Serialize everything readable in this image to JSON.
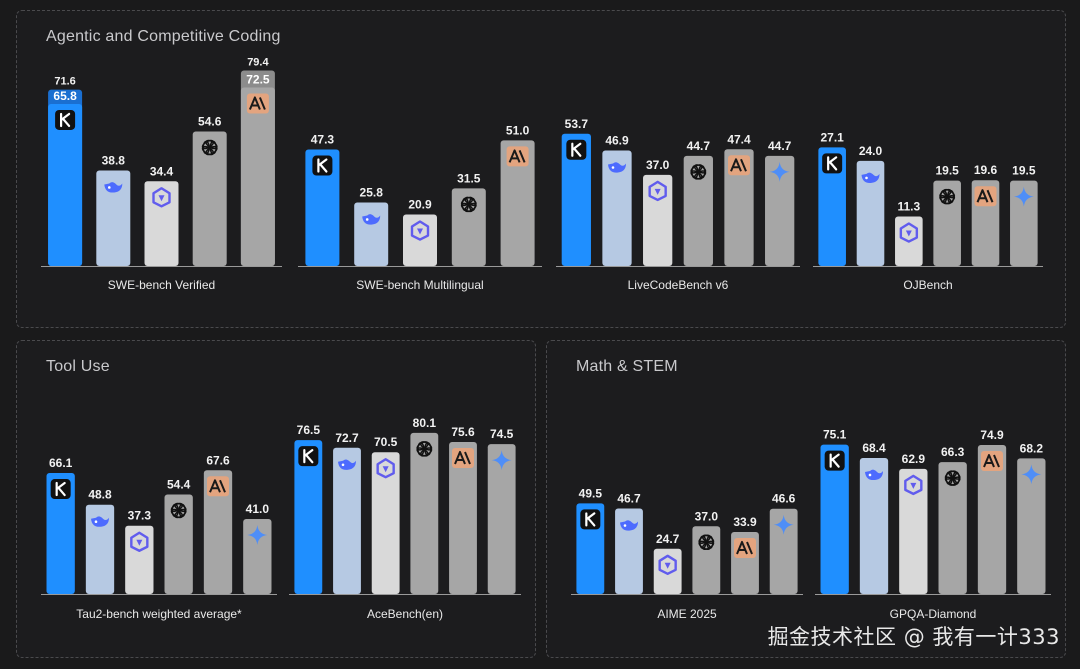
{
  "watermark": "掘金技术社区 @ 我有一计333",
  "colors": {
    "kimi": "#1f8fff",
    "deepseek": "#b6c9e3",
    "qwen": "#d9d9d9",
    "openai": "#a6a6a6",
    "anthropic": "#a6a6a6",
    "gemini": "#a6a6a6",
    "anthropic_badge": "#e3a47f",
    "kimi_badge": "#111111",
    "text": "#e9e9e9",
    "bar_label": "#f2f2f2",
    "axis": "#9a9a9a"
  },
  "models": [
    {
      "key": "kimi",
      "icon": "kimi-k-icon"
    },
    {
      "key": "deepseek",
      "icon": "deepseek-whale-icon"
    },
    {
      "key": "qwen",
      "icon": "qwen-icon"
    },
    {
      "key": "openai",
      "icon": "openai-icon"
    },
    {
      "key": "anthropic",
      "icon": "anthropic-icon"
    },
    {
      "key": "gemini",
      "icon": "gemini-sparkle-icon"
    }
  ],
  "chart_data": [
    {
      "type": "bar",
      "panel": "Agentic and Competitive Coding",
      "title": "Agentic and Competitive Coding",
      "groups": [
        {
          "label": "SWE-bench Verified",
          "ymax": 80,
          "bars": [
            {
              "model": "kimi",
              "value": 65.8,
              "extra": 71.6
            },
            {
              "model": "deepseek",
              "value": 38.8
            },
            {
              "model": "qwen",
              "value": 34.4
            },
            {
              "model": "openai",
              "value": 54.6
            },
            {
              "model": "anthropic",
              "value": 72.5,
              "extra": 79.4
            }
          ]
        },
        {
          "label": "SWE-bench Multilingual",
          "ymax": 80,
          "bars": [
            {
              "model": "kimi",
              "value": 47.3
            },
            {
              "model": "deepseek",
              "value": 25.8
            },
            {
              "model": "qwen",
              "value": 20.9
            },
            {
              "model": "openai",
              "value": 31.5
            },
            {
              "model": "anthropic",
              "value": 51.0
            }
          ]
        },
        {
          "label": "LiveCodeBench v6",
          "ymax": 80,
          "bars": [
            {
              "model": "kimi",
              "value": 53.7
            },
            {
              "model": "deepseek",
              "value": 46.9
            },
            {
              "model": "qwen",
              "value": 37.0
            },
            {
              "model": "openai",
              "value": 44.7
            },
            {
              "model": "anthropic",
              "value": 47.4
            },
            {
              "model": "gemini",
              "value": 44.7
            }
          ]
        },
        {
          "label": "OJBench",
          "ymax": 45,
          "bars": [
            {
              "model": "kimi",
              "value": 27.1
            },
            {
              "model": "deepseek",
              "value": 24.0
            },
            {
              "model": "qwen",
              "value": 11.3
            },
            {
              "model": "openai",
              "value": 19.5
            },
            {
              "model": "anthropic",
              "value": 19.6
            },
            {
              "model": "gemini",
              "value": 19.5
            }
          ]
        }
      ]
    },
    {
      "type": "bar",
      "panel": "Tool Use",
      "title": "Tool Use",
      "groups": [
        {
          "label": "Tau2-bench weighted average*",
          "ymax": 100,
          "bars": [
            {
              "model": "kimi",
              "value": 66.1
            },
            {
              "model": "deepseek",
              "value": 48.8
            },
            {
              "model": "qwen",
              "value": 37.3
            },
            {
              "model": "openai",
              "value": 54.4
            },
            {
              "model": "anthropic",
              "value": 67.6
            },
            {
              "model": "gemini",
              "value": 41.0
            }
          ]
        },
        {
          "label": "AceBench(en)",
          "ymax": 91,
          "bars": [
            {
              "model": "kimi",
              "value": 76.5
            },
            {
              "model": "deepseek",
              "value": 72.7
            },
            {
              "model": "qwen",
              "value": 70.5
            },
            {
              "model": "openai",
              "value": 80.1
            },
            {
              "model": "anthropic",
              "value": 75.6
            },
            {
              "model": "gemini",
              "value": 74.5
            }
          ]
        }
      ]
    },
    {
      "type": "bar",
      "panel": "Math & STEM",
      "title": "Math & STEM",
      "groups": [
        {
          "label": "AIME 2025",
          "ymax": 100,
          "bars": [
            {
              "model": "kimi",
              "value": 49.5
            },
            {
              "model": "deepseek",
              "value": 46.7
            },
            {
              "model": "qwen",
              "value": 24.7
            },
            {
              "model": "openai",
              "value": 37.0
            },
            {
              "model": "anthropic",
              "value": 33.9
            },
            {
              "model": "gemini",
              "value": 46.6
            }
          ]
        },
        {
          "label": "GPQA-Diamond",
          "ymax": 92,
          "bars": [
            {
              "model": "kimi",
              "value": 75.1
            },
            {
              "model": "deepseek",
              "value": 68.4
            },
            {
              "model": "qwen",
              "value": 62.9
            },
            {
              "model": "openai",
              "value": 66.3
            },
            {
              "model": "anthropic",
              "value": 74.9
            },
            {
              "model": "gemini",
              "value": 68.2
            }
          ]
        }
      ]
    }
  ]
}
